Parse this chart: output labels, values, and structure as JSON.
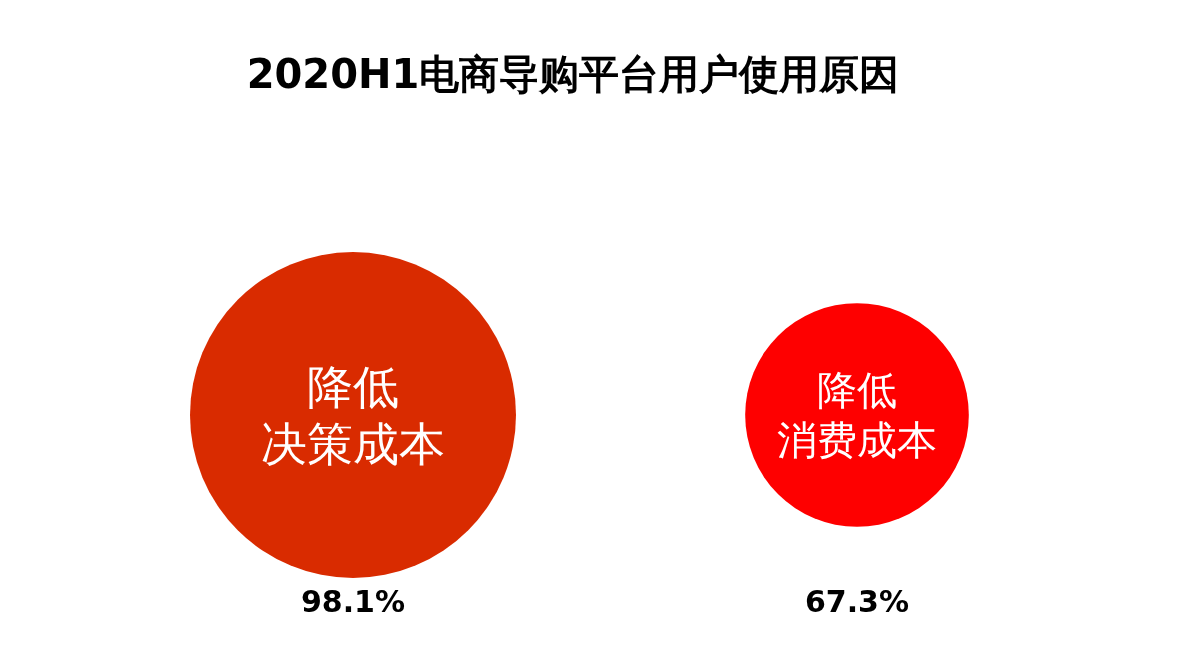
{
  "chart_data": {
    "type": "other",
    "title": "2020H1电商导购平台用户使用原因",
    "categories": [
      "降低决策成本",
      "降低消费成本"
    ],
    "values": [
      98.1,
      67.3
    ],
    "value_labels": [
      "98.1%",
      "67.3%"
    ],
    "colors": [
      "#d92b00",
      "#fe0000"
    ]
  }
}
